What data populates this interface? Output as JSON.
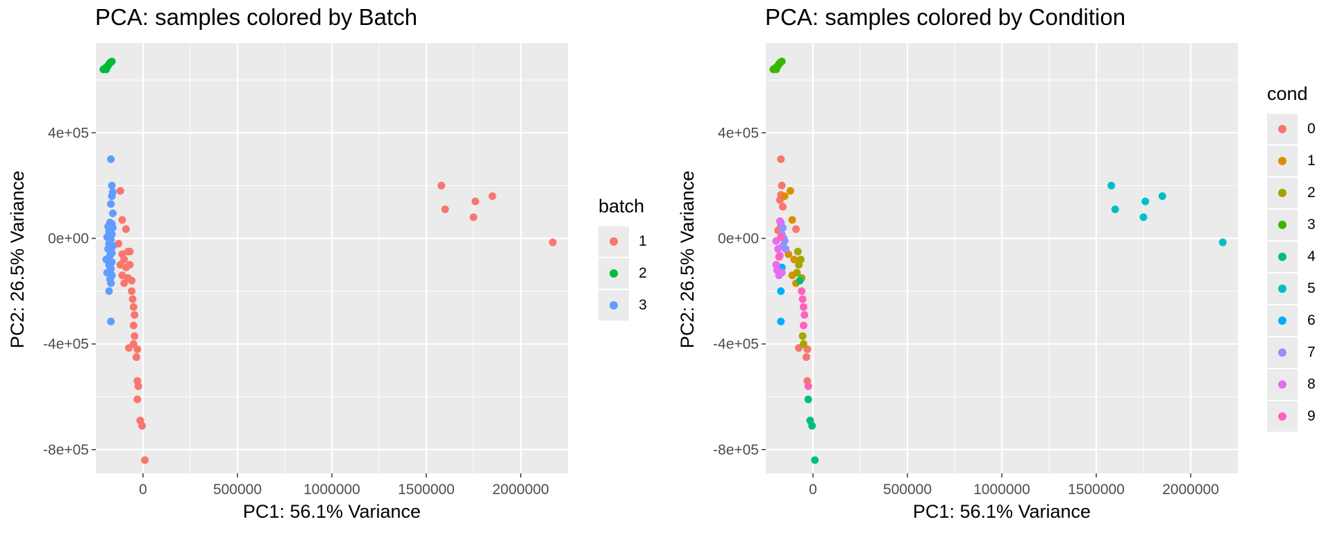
{
  "charts": [
    {
      "title": "PCA: samples colored by Batch",
      "xlabel": "PC1: 56.1% Variance",
      "ylabel": "PC2: 26.5% Variance",
      "legend_title": "batch"
    },
    {
      "title": "PCA: samples colored by Condition",
      "xlabel": "PC1: 56.1% Variance",
      "ylabel": "PC2: 26.5% Variance",
      "legend_title": "cond"
    }
  ],
  "chart_data": [
    {
      "type": "scatter",
      "title": "PCA: samples colored by Batch",
      "xlabel": "PC1: 56.1% Variance",
      "ylabel": "PC2: 26.5% Variance",
      "xlim": [
        -250000,
        2250000
      ],
      "ylim": [
        -890000,
        740000
      ],
      "x_ticks": [
        0,
        500000,
        1000000,
        1500000,
        2000000
      ],
      "x_tick_labels": [
        "0",
        "500000",
        "1000000",
        "1500000",
        "2000000"
      ],
      "y_ticks": [
        400000,
        0,
        -400000,
        -800000
      ],
      "y_tick_labels": [
        "4e+05",
        "0e+00",
        "-4e+05",
        "-8e+05"
      ],
      "grid": true,
      "legend": {
        "title": "batch",
        "position": "right",
        "entries": [
          "1",
          "2",
          "3"
        ]
      },
      "series": [
        {
          "name": "1",
          "color": "#F8766D",
          "points": [
            [
              -120000,
              180000
            ],
            [
              -110000,
              70000
            ],
            [
              -90000,
              35000
            ],
            [
              -130000,
              -20000
            ],
            [
              -110000,
              -60000
            ],
            [
              -80000,
              -50000
            ],
            [
              -70000,
              -50000
            ],
            [
              -100000,
              -80000
            ],
            [
              -120000,
              -100000
            ],
            [
              -90000,
              -110000
            ],
            [
              -70000,
              -100000
            ],
            [
              -110000,
              -140000
            ],
            [
              -80000,
              -150000
            ],
            [
              -60000,
              -160000
            ],
            [
              -100000,
              -170000
            ],
            [
              -60000,
              -200000
            ],
            [
              -55000,
              -230000
            ],
            [
              -50000,
              -260000
            ],
            [
              -45000,
              -290000
            ],
            [
              -50000,
              -330000
            ],
            [
              -45000,
              -370000
            ],
            [
              -50000,
              -400000
            ],
            [
              -75000,
              -415000
            ],
            [
              -30000,
              -420000
            ],
            [
              -35000,
              -450000
            ],
            [
              -30000,
              -540000
            ],
            [
              -25000,
              -560000
            ],
            [
              -30000,
              -610000
            ],
            [
              -15000,
              -690000
            ],
            [
              -5000,
              -710000
            ],
            [
              10000,
              -840000
            ],
            [
              1580000,
              200000
            ],
            [
              1600000,
              110000
            ],
            [
              1760000,
              140000
            ],
            [
              1850000,
              160000
            ],
            [
              1750000,
              80000
            ],
            [
              2170000,
              -15000
            ]
          ]
        },
        {
          "name": "2",
          "color": "#00BA38",
          "points": [
            [
              -210000,
              640000
            ],
            [
              -200000,
              645000
            ],
            [
              -190000,
              650000
            ],
            [
              -185000,
              655000
            ],
            [
              -180000,
              660000
            ],
            [
              -175000,
              665000
            ],
            [
              -165000,
              670000
            ],
            [
              -195000,
              640000
            ]
          ]
        },
        {
          "name": "3",
          "color": "#619CFF",
          "points": [
            [
              -170000,
              300000
            ],
            [
              -165000,
              200000
            ],
            [
              -160000,
              175000
            ],
            [
              -165000,
              160000
            ],
            [
              -170000,
              130000
            ],
            [
              -160000,
              95000
            ],
            [
              -175000,
              60000
            ],
            [
              -165000,
              55000
            ],
            [
              -185000,
              45000
            ],
            [
              -160000,
              40000
            ],
            [
              -180000,
              25000
            ],
            [
              -165000,
              15000
            ],
            [
              -190000,
              5000
            ],
            [
              -170000,
              -5000
            ],
            [
              -180000,
              -20000
            ],
            [
              -160000,
              -30000
            ],
            [
              -185000,
              -40000
            ],
            [
              -165000,
              -55000
            ],
            [
              -175000,
              -65000
            ],
            [
              -195000,
              -80000
            ],
            [
              -165000,
              -90000
            ],
            [
              -180000,
              -100000
            ],
            [
              -170000,
              -115000
            ],
            [
              -190000,
              -130000
            ],
            [
              -165000,
              -140000
            ],
            [
              -175000,
              -155000
            ],
            [
              -170000,
              -170000
            ],
            [
              -180000,
              -200000
            ],
            [
              -170000,
              -315000
            ]
          ]
        }
      ]
    },
    {
      "type": "scatter",
      "title": "PCA: samples colored by Condition",
      "xlabel": "PC1: 56.1% Variance",
      "ylabel": "PC2: 26.5% Variance",
      "xlim": [
        -250000,
        2250000
      ],
      "ylim": [
        -890000,
        740000
      ],
      "x_ticks": [
        0,
        500000,
        1000000,
        1500000,
        2000000
      ],
      "x_tick_labels": [
        "0",
        "500000",
        "1000000",
        "1500000",
        "2000000"
      ],
      "y_ticks": [
        400000,
        0,
        -400000,
        -800000
      ],
      "y_tick_labels": [
        "4e+05",
        "0e+00",
        "-4e+05",
        "-8e+05"
      ],
      "grid": true,
      "legend": {
        "title": "cond",
        "position": "right",
        "entries": [
          "0",
          "1",
          "2",
          "3",
          "4",
          "5",
          "6",
          "7",
          "8",
          "9"
        ]
      },
      "series": [
        {
          "name": "0",
          "color": "#F8766D",
          "points": [
            [
              -170000,
              300000
            ],
            [
              -165000,
              200000
            ],
            [
              -170000,
              165000
            ],
            [
              -175000,
              145000
            ],
            [
              -160000,
              120000
            ],
            [
              -90000,
              35000
            ],
            [
              -75000,
              -415000
            ],
            [
              -35000,
              -450000
            ],
            [
              -30000,
              -420000
            ],
            [
              -30000,
              -540000
            ],
            [
              -170000,
              50000
            ],
            [
              -185000,
              30000
            ]
          ]
        },
        {
          "name": "1",
          "color": "#D89000",
          "points": [
            [
              -120000,
              180000
            ],
            [
              -110000,
              70000
            ],
            [
              -100000,
              -80000
            ],
            [
              -110000,
              -140000
            ],
            [
              -130000,
              -60000
            ],
            [
              -90000,
              -170000
            ],
            [
              -150000,
              160000
            ]
          ]
        },
        {
          "name": "2",
          "color": "#A3A500",
          "points": [
            [
              -80000,
              -50000
            ],
            [
              -75000,
              -100000
            ],
            [
              -65000,
              -80000
            ],
            [
              -60000,
              -150000
            ],
            [
              -55000,
              -370000
            ],
            [
              -50000,
              -400000
            ],
            [
              -85000,
              -130000
            ]
          ]
        },
        {
          "name": "3",
          "color": "#39B600",
          "points": [
            [
              -210000,
              640000
            ],
            [
              -200000,
              645000
            ],
            [
              -190000,
              650000
            ],
            [
              -185000,
              655000
            ],
            [
              -180000,
              660000
            ],
            [
              -175000,
              665000
            ],
            [
              -165000,
              670000
            ],
            [
              -195000,
              640000
            ]
          ]
        },
        {
          "name": "4",
          "color": "#00BF7D",
          "points": [
            [
              -70000,
              -160000
            ],
            [
              -25000,
              -610000
            ],
            [
              -15000,
              -690000
            ],
            [
              -5000,
              -710000
            ],
            [
              10000,
              -840000
            ]
          ]
        },
        {
          "name": "5",
          "color": "#00BFC4",
          "points": [
            [
              1580000,
              200000
            ],
            [
              1600000,
              110000
            ],
            [
              1760000,
              140000
            ],
            [
              1850000,
              160000
            ],
            [
              1750000,
              80000
            ],
            [
              2170000,
              -15000
            ]
          ]
        },
        {
          "name": "6",
          "color": "#00B0F6",
          "points": [
            [
              -170000,
              -200000
            ],
            [
              -170000,
              -315000
            ],
            [
              -165000,
              -110000
            ]
          ]
        },
        {
          "name": "7",
          "color": "#9590FF",
          "points": [
            [
              -160000,
              40000
            ],
            [
              -165000,
              15000
            ],
            [
              -150000,
              -10000
            ],
            [
              -160000,
              -30000
            ],
            [
              -170000,
              60000
            ],
            [
              -155000,
              0
            ],
            [
              -145000,
              -40000
            ]
          ]
        },
        {
          "name": "8",
          "color": "#E76BF3",
          "points": [
            [
              -185000,
              -40000
            ],
            [
              -175000,
              -65000
            ],
            [
              -195000,
              -100000
            ],
            [
              -165000,
              -130000
            ],
            [
              -190000,
              -120000
            ],
            [
              -180000,
              -140000
            ],
            [
              -195000,
              -10000
            ],
            [
              -175000,
              65000
            ]
          ]
        },
        {
          "name": "9",
          "color": "#FF62BC",
          "points": [
            [
              -60000,
              -200000
            ],
            [
              -55000,
              -230000
            ],
            [
              -50000,
              -260000
            ],
            [
              -45000,
              -290000
            ],
            [
              -50000,
              -330000
            ],
            [
              -25000,
              -560000
            ],
            [
              -180000,
              -70000
            ],
            [
              -170000,
              5000
            ]
          ]
        }
      ]
    }
  ]
}
